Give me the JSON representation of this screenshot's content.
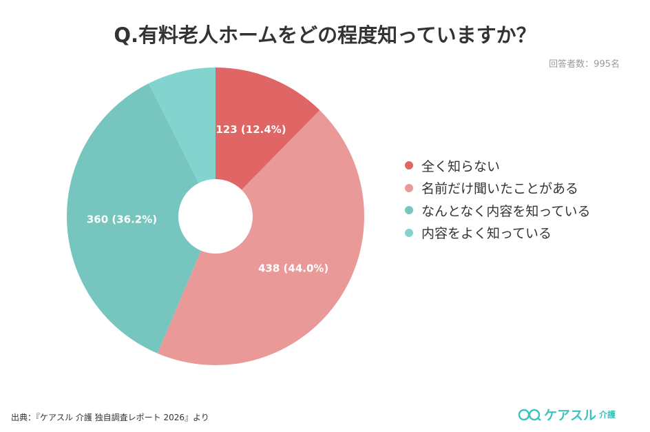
{
  "chart_data": {
    "type": "pie",
    "title": "Q.有料老人ホームをどの程度知っていますか？",
    "subtitle": "回答者数：995名",
    "categories": [
      "全く知らない",
      "名前だけ聞いたことがある",
      "なんとなく内容を知っている",
      "内容をよく知っている"
    ],
    "values": [
      123,
      438,
      360,
      74
    ],
    "labels": [
      "123 (12.4%)",
      "438 (44.0%)",
      "360 (36.2%)",
      ""
    ],
    "colors": [
      "#e06666",
      "#ea9999",
      "#76c5bf",
      "#83d4cf"
    ],
    "donut": true,
    "legend": "right"
  },
  "footer": {
    "source": "出典：『ケアスル 介護 独自調査レポート 2026』より",
    "logo": "ケアスル",
    "logo_sub": "介護"
  }
}
